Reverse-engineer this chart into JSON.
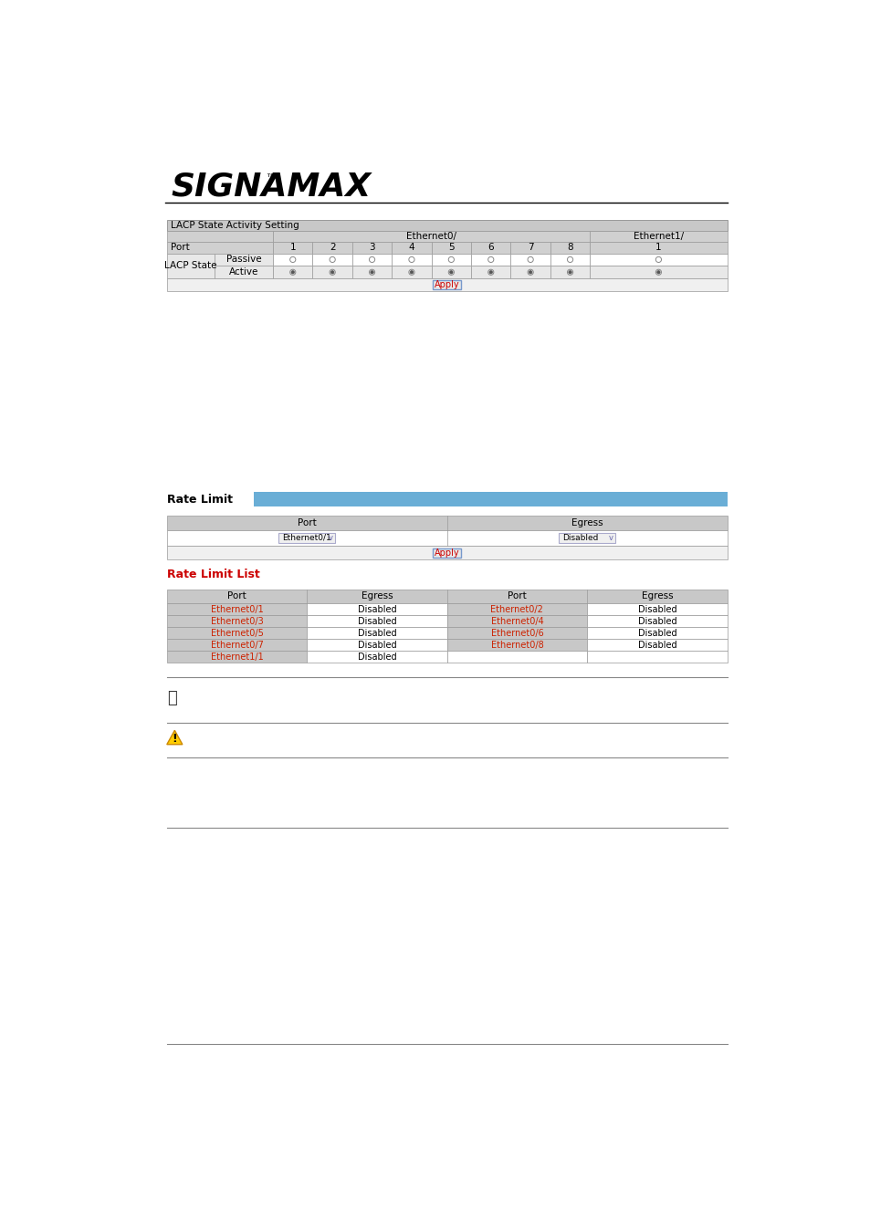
{
  "bg_color": "#ffffff",
  "logo_text": "SIGNAMAX",
  "logo_trademark": "™",
  "section1_title": "LACP State Activity Setting",
  "lacp_table": {
    "eth0_cols": [
      "1",
      "2",
      "3",
      "4",
      "5",
      "6",
      "7",
      "8"
    ],
    "eth1_cols": [
      "1"
    ],
    "port_label": "Port",
    "lacp_label": "LACP State",
    "passive_label": "Passive",
    "active_label": "Active",
    "ethernet0_label": "Ethernet0/",
    "ethernet1_label": "Ethernet1/",
    "apply_label": "Apply"
  },
  "rate_limit_section": {
    "title": "Rate Limit",
    "bar_color": "#6aaed6",
    "port_label": "Port",
    "egress_label": "Egress",
    "port_value": "Ethernet0/1",
    "egress_value": "Disabled",
    "apply_label": "Apply"
  },
  "rate_limit_list": {
    "title": "Rate Limit List",
    "title_color": "#cc0000",
    "col_headers": [
      "Port",
      "Egress",
      "Port",
      "Egress"
    ],
    "rows": [
      [
        "Ethernet0/1",
        "Disabled",
        "Ethernet0/2",
        "Disabled"
      ],
      [
        "Ethernet0/3",
        "Disabled",
        "Ethernet0/4",
        "Disabled"
      ],
      [
        "Ethernet0/5",
        "Disabled",
        "Ethernet0/6",
        "Disabled"
      ],
      [
        "Ethernet0/7",
        "Disabled",
        "Ethernet0/8",
        "Disabled"
      ],
      [
        "Ethernet1/1",
        "Disabled",
        "",
        ""
      ]
    ]
  }
}
